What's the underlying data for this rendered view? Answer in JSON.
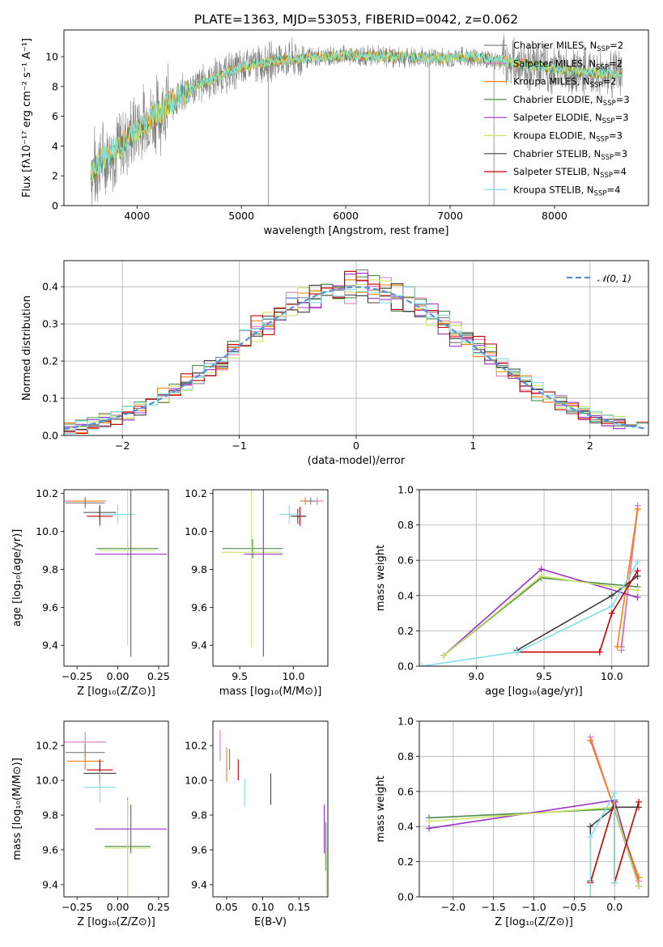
{
  "title": "PLATE=1363, MJD=53053, FIBERID=0042, z=0.062",
  "colors": {
    "chabrier_miles": "#7f7f7f",
    "salpeter_miles": "#e377c2",
    "kroupa_miles": "#ff7f0e",
    "chabrier_elodie": "#4c8c4c",
    "salpeter_elodie": "#9b30c8",
    "kroupa_elodie": "#c8e664",
    "chabrier_stelib": "#404040",
    "salpeter_stelib": "#c00000",
    "kroupa_stelib": "#7fdfe6",
    "normal_curve": "#5b8ed6",
    "data": "#808080"
  },
  "legend": [
    {
      "key": "chabrier_miles",
      "base": "Chabrier MILES, N",
      "n": "2"
    },
    {
      "key": "salpeter_miles",
      "base": "Salpeter MILES, N",
      "n": "2"
    },
    {
      "key": "kroupa_miles",
      "base": "Kroupa MILES, N",
      "n": "2"
    },
    {
      "key": "chabrier_elodie",
      "base": "Chabrier ELODIE, N",
      "n": "3"
    },
    {
      "key": "salpeter_elodie",
      "base": "Salpeter ELODIE, N",
      "n": "3"
    },
    {
      "key": "kroupa_elodie",
      "base": "Kroupa ELODIE, N",
      "n": "3"
    },
    {
      "key": "chabrier_stelib",
      "base": "Chabrier STELIB, N",
      "n": "3"
    },
    {
      "key": "salpeter_stelib",
      "base": "Salpeter STELIB, N",
      "n": "4"
    },
    {
      "key": "kroupa_stelib",
      "base": "Kroupa STELIB, N",
      "n": "4"
    }
  ],
  "legend_sub": "SSP",
  "normal_label": "𝒩(0, 1)",
  "chart_data": [
    {
      "id": "spectrum",
      "type": "line",
      "xlabel": "wavelength [Angstrom, rest frame]",
      "ylabel": "Flux [fλ10⁻¹⁷ erg cm⁻² s⁻¹ A⁻¹]",
      "xlim": [
        3300,
        8900
      ],
      "ylim": [
        0,
        11.8
      ],
      "xticks": [
        4000,
        5000,
        6000,
        7000,
        8000
      ],
      "yticks": [
        0,
        2,
        4,
        6,
        8,
        10
      ],
      "continuum": [
        [
          3560,
          2.4
        ],
        [
          3700,
          3.3
        ],
        [
          3850,
          4.0
        ],
        [
          3950,
          4.8
        ],
        [
          4100,
          5.7
        ],
        [
          4300,
          6.8
        ],
        [
          4600,
          8.2
        ],
        [
          5000,
          9.3
        ],
        [
          5300,
          9.7
        ],
        [
          5600,
          9.9
        ],
        [
          6000,
          10.1
        ],
        [
          6500,
          10.0
        ],
        [
          6900,
          9.9
        ],
        [
          7200,
          10.0
        ],
        [
          7500,
          9.7
        ],
        [
          7800,
          9.4
        ],
        [
          8200,
          9.0
        ],
        [
          8650,
          8.8
        ]
      ],
      "grid": false
    },
    {
      "id": "residuals",
      "type": "step",
      "xlabel": "(data-model)/error",
      "ylabel": "Normed distribution",
      "xlim": [
        -2.5,
        2.5
      ],
      "ylim": [
        0,
        0.47
      ],
      "xticks": [
        -2,
        -1,
        0,
        1,
        2
      ],
      "yticks": [
        0.0,
        0.1,
        0.2,
        0.3,
        0.4
      ],
      "grid": true
    },
    {
      "id": "age_Z",
      "type": "errorbar",
      "xlabel": "Z [log₁₀(Z/Z⊙)]",
      "ylabel": "age  [log₁₀(age/yr)]",
      "xlim": [
        -0.33,
        0.31
      ],
      "ylim": [
        9.29,
        10.22
      ],
      "xticks": [
        -0.25,
        0.0,
        0.25
      ],
      "yticks": [
        9.4,
        9.6,
        9.8,
        10.0,
        10.2
      ],
      "grid": false,
      "points": [
        {
          "c": "salpeter_miles",
          "x": -0.2,
          "xe": 0.13,
          "y": 10.16,
          "ye": 0.02
        },
        {
          "c": "kroupa_miles",
          "x": -0.2,
          "xe": 0.11,
          "y": 10.16,
          "ye": 0.02
        },
        {
          "c": "chabrier_miles",
          "x": -0.2,
          "xe": 0.12,
          "y": 10.15,
          "ye": 0.03
        },
        {
          "c": "salpeter_stelib",
          "x": -0.11,
          "xe": 0.08,
          "y": 10.08,
          "ye": 0.05
        },
        {
          "c": "chabrier_stelib",
          "x": -0.11,
          "xe": 0.1,
          "y": 10.1,
          "ye": 0.04
        },
        {
          "c": "kroupa_stelib",
          "x": 0.0,
          "xe": 0.1,
          "y": 10.09,
          "ye": 0.05
        },
        {
          "c": "chabrier_elodie",
          "x": 0.06,
          "xe": 0.19,
          "y": 9.91,
          "ye": 0.05
        },
        {
          "c": "kroupa_elodie",
          "x": 0.06,
          "xe": 0.17,
          "y": 9.9,
          "ye": 0.5
        },
        {
          "c": "salpeter_elodie",
          "x": 0.08,
          "xe": 0.22,
          "y": 9.88,
          "ye": 0.54
        }
      ]
    },
    {
      "id": "age_mass",
      "type": "errorbar",
      "xlabel": "mass [log₁₀(M/M⊙)]",
      "ylabel": "",
      "xlim": [
        9.25,
        10.32
      ],
      "ylim": [
        9.29,
        10.22
      ],
      "xticks": [
        9.5,
        10.0
      ],
      "yticks": [
        9.4,
        9.6,
        9.8,
        10.0,
        10.2
      ],
      "grid": false,
      "points": [
        {
          "c": "salpeter_miles",
          "x": 10.22,
          "xe": 0.06,
          "y": 10.16,
          "ye": 0.02
        },
        {
          "c": "kroupa_miles",
          "x": 10.11,
          "xe": 0.05,
          "y": 10.16,
          "ye": 0.02
        },
        {
          "c": "chabrier_miles",
          "x": 10.16,
          "xe": 0.05,
          "y": 10.16,
          "ye": 0.02
        },
        {
          "c": "salpeter_stelib",
          "x": 10.06,
          "xe": 0.06,
          "y": 10.08,
          "ye": 0.05
        },
        {
          "c": "chabrier_stelib",
          "x": 10.04,
          "xe": 0.07,
          "y": 10.08,
          "ye": 0.04
        },
        {
          "c": "kroupa_stelib",
          "x": 9.96,
          "xe": 0.09,
          "y": 10.09,
          "ye": 0.05
        },
        {
          "c": "chabrier_elodie",
          "x": 9.62,
          "xe": 0.28,
          "y": 9.91,
          "ye": 0.05
        },
        {
          "c": "kroupa_elodie",
          "x": 9.61,
          "xe": 0.28,
          "y": 9.89,
          "ye": 0.5
        },
        {
          "c": "salpeter_elodie",
          "x": 9.72,
          "xe": 0.18,
          "y": 9.88,
          "ye": 0.54
        }
      ]
    },
    {
      "id": "weight_age",
      "type": "line",
      "xlabel": "age  [log₁₀(age/yr)]",
      "ylabel": "mass weight",
      "xlim": [
        8.58,
        10.27
      ],
      "ylim": [
        0,
        1.0
      ],
      "xticks": [
        9.0,
        9.5,
        10.0
      ],
      "yticks": [
        0.0,
        0.2,
        0.4,
        0.6,
        0.8,
        1.0
      ],
      "grid": true,
      "series": [
        {
          "c": "chabrier_miles",
          "x": [
            10.07,
            10.19
          ],
          "y": [
            0.11,
            0.89
          ]
        },
        {
          "c": "salpeter_miles",
          "x": [
            10.07,
            10.19
          ],
          "y": [
            0.09,
            0.91
          ]
        },
        {
          "c": "kroupa_miles",
          "x": [
            10.04,
            10.19
          ],
          "y": [
            0.11,
            0.89
          ]
        },
        {
          "c": "chabrier_elodie",
          "x": [
            8.76,
            9.48,
            10.19
          ],
          "y": [
            0.06,
            0.5,
            0.45
          ]
        },
        {
          "c": "salpeter_elodie",
          "x": [
            8.76,
            9.48,
            10.19
          ],
          "y": [
            0.06,
            0.55,
            0.39
          ]
        },
        {
          "c": "kroupa_elodie",
          "x": [
            8.76,
            9.48,
            10.19
          ],
          "y": [
            0.06,
            0.51,
            0.43
          ]
        },
        {
          "c": "chabrier_stelib",
          "x": [
            9.3,
            10.0,
            10.19
          ],
          "y": [
            0.09,
            0.4,
            0.51
          ]
        },
        {
          "c": "salpeter_stelib",
          "x": [
            9.3,
            9.91,
            10.0,
            10.19
          ],
          "y": [
            0.08,
            0.08,
            0.3,
            0.54
          ]
        },
        {
          "c": "kroupa_stelib",
          "x": [
            8.6,
            9.3,
            10.0,
            10.19
          ],
          "y": [
            0.0,
            0.08,
            0.34,
            0.59
          ]
        }
      ]
    },
    {
      "id": "mass_Z",
      "type": "errorbar",
      "xlabel": "Z [log₁₀(Z/Z⊙)]",
      "ylabel": "mass [log₁₀(M/M⊙)]",
      "xlim": [
        -0.33,
        0.31
      ],
      "ylim": [
        9.33,
        10.34
      ],
      "xticks": [
        -0.25,
        0.0,
        0.25
      ],
      "yticks": [
        9.4,
        9.6,
        9.8,
        10.0,
        10.2
      ],
      "grid": false,
      "points": [
        {
          "c": "salpeter_miles",
          "x": -0.2,
          "xe": 0.13,
          "y": 10.22,
          "ye": 0.06
        },
        {
          "c": "chabrier_miles",
          "x": -0.2,
          "xe": 0.12,
          "y": 10.16,
          "ye": 0.05
        },
        {
          "c": "kroupa_miles",
          "x": -0.2,
          "xe": 0.11,
          "y": 10.11,
          "ye": 0.05
        },
        {
          "c": "salpeter_stelib",
          "x": -0.11,
          "xe": 0.08,
          "y": 10.06,
          "ye": 0.06
        },
        {
          "c": "chabrier_stelib",
          "x": -0.11,
          "xe": 0.1,
          "y": 10.04,
          "ye": 0.07
        },
        {
          "c": "kroupa_stelib",
          "x": -0.11,
          "xe": 0.1,
          "y": 9.96,
          "ye": 0.09
        },
        {
          "c": "chabrier_elodie",
          "x": 0.06,
          "xe": 0.14,
          "y": 9.62,
          "ye": 0.28
        },
        {
          "c": "kroupa_elodie",
          "x": 0.06,
          "xe": 0.14,
          "y": 9.61,
          "ye": 0.28
        },
        {
          "c": "salpeter_elodie",
          "x": 0.08,
          "xe": 0.22,
          "y": 9.72,
          "ye": 0.14
        }
      ]
    },
    {
      "id": "mass_ebv",
      "type": "errorbar",
      "xlabel": "E(B-V)",
      "ylabel": "",
      "xlim": [
        0.031,
        0.19
      ],
      "ylim": [
        9.33,
        10.34
      ],
      "xticks": [
        0.05,
        0.1,
        0.15
      ],
      "yticks": [
        9.4,
        9.6,
        9.8,
        10.0,
        10.2
      ],
      "grid": false,
      "points": [
        {
          "c": "salpeter_miles",
          "x": 0.041,
          "xe": 0,
          "y": 10.2,
          "ye": 0.09
        },
        {
          "c": "chabrier_miles",
          "x": 0.054,
          "xe": 0,
          "y": 10.12,
          "ye": 0.06
        },
        {
          "c": "kroupa_miles",
          "x": 0.05,
          "xe": 0,
          "y": 10.09,
          "ye": 0.1
        },
        {
          "c": "salpeter_stelib",
          "x": 0.066,
          "xe": 0,
          "y": 10.06,
          "ye": 0.06
        },
        {
          "c": "kroupa_stelib",
          "x": 0.075,
          "xe": 0,
          "y": 9.93,
          "ye": 0.08
        },
        {
          "c": "chabrier_stelib",
          "x": 0.111,
          "xe": 0,
          "y": 9.95,
          "ye": 0.09
        },
        {
          "c": "salpeter_elodie",
          "x": 0.185,
          "xe": 0,
          "y": 9.72,
          "ye": 0.14
        },
        {
          "c": "chabrier_elodie",
          "x": 0.187,
          "xe": 0,
          "y": 9.62,
          "ye": 0.14
        },
        {
          "c": "kroupa_elodie",
          "x": 0.188,
          "xe": 0,
          "y": 9.48,
          "ye": 0.14
        }
      ]
    },
    {
      "id": "weight_Z",
      "type": "line",
      "xlabel": "Z [log₁₀(Z/Z⊙)]",
      "ylabel": "mass weight",
      "xlim": [
        -2.42,
        0.42
      ],
      "ylim": [
        0,
        1.0
      ],
      "xticks": [
        -2.0,
        -1.5,
        -1.0,
        -0.5,
        0.0
      ],
      "yticks": [
        0.0,
        0.2,
        0.4,
        0.6,
        0.8,
        1.0
      ],
      "grid": true,
      "series": [
        {
          "c": "chabrier_miles",
          "x": [
            -0.3,
            0.0,
            0.3
          ],
          "y": [
            0.89,
            0.5,
            0.11
          ]
        },
        {
          "c": "salpeter_miles",
          "x": [
            -0.3,
            0.0,
            0.3
          ],
          "y": [
            0.91,
            0.5,
            0.09
          ]
        },
        {
          "c": "kroupa_miles",
          "x": [
            -0.3,
            0.0,
            0.3
          ],
          "y": [
            0.89,
            0.5,
            0.11
          ]
        },
        {
          "c": "chabrier_elodie",
          "x": [
            -2.3,
            0.0,
            0.3
          ],
          "y": [
            0.45,
            0.5,
            0.06
          ]
        },
        {
          "c": "salpeter_elodie",
          "x": [
            -2.3,
            0.0,
            0.3
          ],
          "y": [
            0.39,
            0.55,
            0.06
          ]
        },
        {
          "c": "kroupa_elodie",
          "x": [
            -2.3,
            0.0,
            0.3
          ],
          "y": [
            0.43,
            0.51,
            0.06
          ]
        },
        {
          "c": "chabrier_stelib",
          "x": [
            -0.3,
            -0.3,
            0.0,
            0.3
          ],
          "y": [
            0.09,
            0.4,
            0.51,
            0.51
          ]
        },
        {
          "c": "salpeter_stelib",
          "x": [
            -0.3,
            0.0,
            0.0,
            0.3
          ],
          "y": [
            0.08,
            0.54,
            0.08,
            0.54
          ]
        },
        {
          "c": "kroupa_stelib",
          "x": [
            -0.3,
            -0.3,
            0.0,
            0.0
          ],
          "y": [
            0.0,
            0.34,
            0.59,
            0.08
          ]
        }
      ]
    }
  ]
}
